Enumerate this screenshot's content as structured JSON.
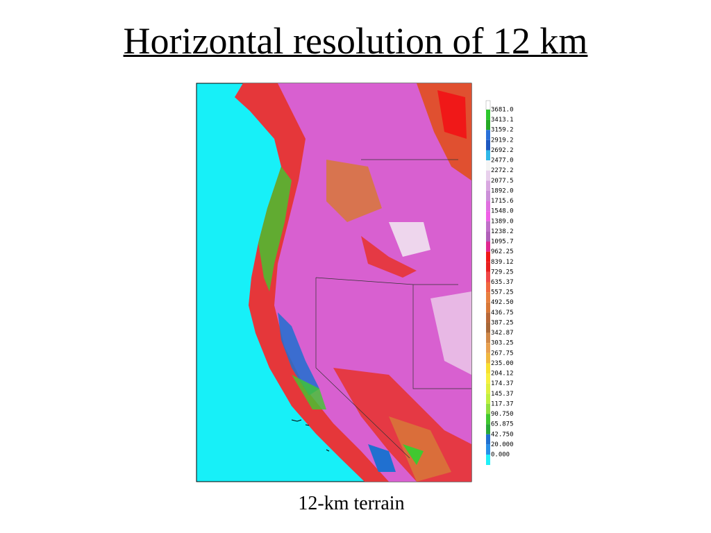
{
  "header": {
    "title": "Horizontal resolution of 12 km"
  },
  "figure": {
    "caption": "12-km terrain",
    "legend": [
      {
        "label": "3681.0",
        "color": "#2ec82e"
      },
      {
        "label": "3413.1",
        "color": "#24a824"
      },
      {
        "label": "3159.2",
        "color": "#2a70d8"
      },
      {
        "label": "2919.2",
        "color": "#1e58c0"
      },
      {
        "label": "2692.2",
        "color": "#30b8e8"
      },
      {
        "label": "2477.0",
        "color": "#f4f4f4"
      },
      {
        "label": "2272.2",
        "color": "#e8d0ec"
      },
      {
        "label": "2077.5",
        "color": "#d8a8e0"
      },
      {
        "label": "1892.0",
        "color": "#cc90d8"
      },
      {
        "label": "1715.6",
        "color": "#e070e0"
      },
      {
        "label": "1548.0",
        "color": "#f060e8"
      },
      {
        "label": "1389.0",
        "color": "#c070c8"
      },
      {
        "label": "1238.2",
        "color": "#b060b8"
      },
      {
        "label": "1095.7",
        "color": "#e02890"
      },
      {
        "label": "962.25",
        "color": "#f01818"
      },
      {
        "label": "839.12",
        "color": "#e82020"
      },
      {
        "label": "729.25",
        "color": "#f04848"
      },
      {
        "label": "635.37",
        "color": "#f06840"
      },
      {
        "label": "557.25",
        "color": "#e88040"
      },
      {
        "label": "492.50",
        "color": "#d87838"
      },
      {
        "label": "436.75",
        "color": "#b86838"
      },
      {
        "label": "387.25",
        "color": "#a86838"
      },
      {
        "label": "342.87",
        "color": "#d08848"
      },
      {
        "label": "303.25",
        "color": "#e8a050"
      },
      {
        "label": "267.75",
        "color": "#f0b840"
      },
      {
        "label": "235.00",
        "color": "#f8e030"
      },
      {
        "label": "204.12",
        "color": "#f8f040"
      },
      {
        "label": "174.37",
        "color": "#e0f040"
      },
      {
        "label": "145.37",
        "color": "#c0f040"
      },
      {
        "label": "117.37",
        "color": "#90e040"
      },
      {
        "label": "90.750",
        "color": "#40c830"
      },
      {
        "label": "65.875",
        "color": "#28a838"
      },
      {
        "label": "42.750",
        "color": "#2070d0"
      },
      {
        "label": "20.000",
        "color": "#2890e8"
      },
      {
        "label": "0.000",
        "color": "#20f0f8"
      }
    ]
  }
}
